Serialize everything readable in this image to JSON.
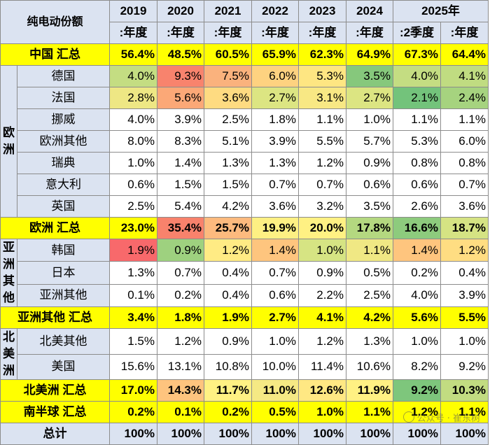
{
  "header": {
    "corner": "纯电动份额",
    "years": [
      "2019",
      "2020",
      "2021",
      "2022",
      "2023",
      "2024",
      "2025年"
    ],
    "periods": [
      ":年度",
      ":年度",
      ":年度",
      ":年度",
      ":年度",
      ":年度",
      ":2季度",
      ":年度"
    ]
  },
  "china_total": {
    "label": "中国 汇总",
    "values": [
      "56.4%",
      "48.5%",
      "60.5%",
      "65.9%",
      "62.3%",
      "64.9%",
      "67.3%",
      "64.4%"
    ],
    "colors": [
      "#ffff00",
      "#ffff00",
      "#ffff00",
      "#ffff00",
      "#ffff00",
      "#ffff00",
      "#ffff00",
      "#ffff00"
    ]
  },
  "europe": {
    "region_chars": [
      "欧",
      "洲"
    ],
    "rows": [
      {
        "country": "德国",
        "values": [
          "4.0%",
          "9.3%",
          "7.5%",
          "6.0%",
          "5.3%",
          "3.5%",
          "4.0%",
          "4.1%"
        ],
        "colors": [
          "#c4dd82",
          "#f8836d",
          "#fab27d",
          "#fed280",
          "#fee682",
          "#86c87c",
          "#c4dd82",
          "#c0dc81"
        ]
      },
      {
        "country": "法国",
        "values": [
          "2.8%",
          "5.6%",
          "3.6%",
          "2.7%",
          "3.1%",
          "2.7%",
          "2.1%",
          "2.4%"
        ],
        "colors": [
          "#eee784",
          "#fba877",
          "#fedb81",
          "#dce582",
          "#f8e884",
          "#dce582",
          "#73c37b",
          "#a6d37f"
        ]
      },
      {
        "country": "挪威",
        "values": [
          "4.0%",
          "3.9%",
          "2.5%",
          "1.8%",
          "1.1%",
          "1.0%",
          "1.1%",
          "1.1%"
        ],
        "colors": []
      },
      {
        "country": "欧洲其他",
        "values": [
          "8.0%",
          "8.3%",
          "5.1%",
          "3.9%",
          "5.5%",
          "5.7%",
          "5.3%",
          "6.0%"
        ],
        "colors": []
      },
      {
        "country": "瑞典",
        "values": [
          "1.0%",
          "1.4%",
          "1.3%",
          "1.3%",
          "1.2%",
          "0.9%",
          "0.8%",
          "0.8%"
        ],
        "colors": []
      },
      {
        "country": "意大利",
        "values": [
          "0.6%",
          "1.5%",
          "1.5%",
          "0.7%",
          "0.7%",
          "0.6%",
          "0.6%",
          "0.7%"
        ],
        "colors": []
      },
      {
        "country": "英国",
        "values": [
          "2.5%",
          "5.4%",
          "4.2%",
          "3.6%",
          "3.2%",
          "3.5%",
          "2.6%",
          "3.6%"
        ],
        "colors": []
      }
    ]
  },
  "europe_total": {
    "label": "欧洲 汇总",
    "values": [
      "23.0%",
      "35.4%",
      "25.7%",
      "19.9%",
      "20.0%",
      "17.8%",
      "16.6%",
      "18.7%"
    ],
    "colors": [
      "#ffff00",
      "#f8826c",
      "#fdba7e",
      "#fef083",
      "#fff183",
      "#b4d880",
      "#8dcb7d",
      "#d5e383"
    ]
  },
  "asia": {
    "region_chars": [
      "亚",
      "洲",
      "其",
      "他"
    ],
    "rows": [
      {
        "country": "韩国",
        "values": [
          "1.9%",
          "0.9%",
          "1.2%",
          "1.4%",
          "1.0%",
          "1.1%",
          "1.4%",
          "1.2%"
        ],
        "colors": [
          "#f8696b",
          "#9ed17f",
          "#ffeb84",
          "#fec57e",
          "#d6e483",
          "#f0e884",
          "#fec57e",
          "#ffdd82"
        ]
      },
      {
        "country": "日本",
        "values": [
          "1.3%",
          "0.7%",
          "0.4%",
          "0.7%",
          "0.9%",
          "0.5%",
          "0.2%",
          "0.4%"
        ],
        "colors": []
      },
      {
        "country": "亚洲其他",
        "values": [
          "0.1%",
          "0.2%",
          "0.4%",
          "0.6%",
          "2.2%",
          "2.5%",
          "4.0%",
          "3.9%"
        ],
        "colors": []
      }
    ]
  },
  "asia_total": {
    "label": "亚洲其他 汇总",
    "values": [
      "3.4%",
      "1.8%",
      "1.9%",
      "2.7%",
      "4.1%",
      "4.2%",
      "5.6%",
      "5.5%"
    ],
    "colors": [
      "#ffff00",
      "#ffff00",
      "#ffff00",
      "#ffff00",
      "#ffff00",
      "#ffff00",
      "#ffff00",
      "#ffff00"
    ]
  },
  "north_america": {
    "region_chars": [
      "北",
      "美",
      "洲"
    ],
    "rows": [
      {
        "country": "北美其他",
        "values": [
          "1.5%",
          "1.2%",
          "0.9%",
          "1.0%",
          "1.2%",
          "1.3%",
          "1.0%",
          "1.0%"
        ],
        "colors": []
      },
      {
        "country": "美国",
        "values": [
          "15.6%",
          "13.1%",
          "10.8%",
          "10.0%",
          "11.4%",
          "10.6%",
          "8.2%",
          "9.2%"
        ],
        "colors": []
      }
    ]
  },
  "north_america_total": {
    "label": "北美洲 汇总",
    "values": [
      "17.0%",
      "14.3%",
      "11.7%",
      "11.0%",
      "12.6%",
      "11.9%",
      "9.2%",
      "10.3%"
    ],
    "colors": [
      "#ffff00",
      "#fec47e",
      "#fff183",
      "#f5e984",
      "#ffe883",
      "#fff183",
      "#7ec67c",
      "#c2dc81"
    ]
  },
  "southern_total": {
    "label": "南半球 汇总",
    "values": [
      "0.2%",
      "0.1%",
      "0.2%",
      "0.5%",
      "1.0%",
      "1.1%",
      "1.2%",
      "1.1%"
    ],
    "colors": [
      "#ffff00",
      "#ffff00",
      "#ffff00",
      "#ffff00",
      "#ffff00",
      "#ffff00",
      "#ffff00",
      "#ffff00"
    ]
  },
  "grand_total": {
    "label": "总计",
    "values": [
      "100%",
      "100%",
      "100%",
      "100%",
      "100%",
      "100%",
      "100%",
      "100%"
    ]
  },
  "watermark": "公众号 · 崔东树"
}
